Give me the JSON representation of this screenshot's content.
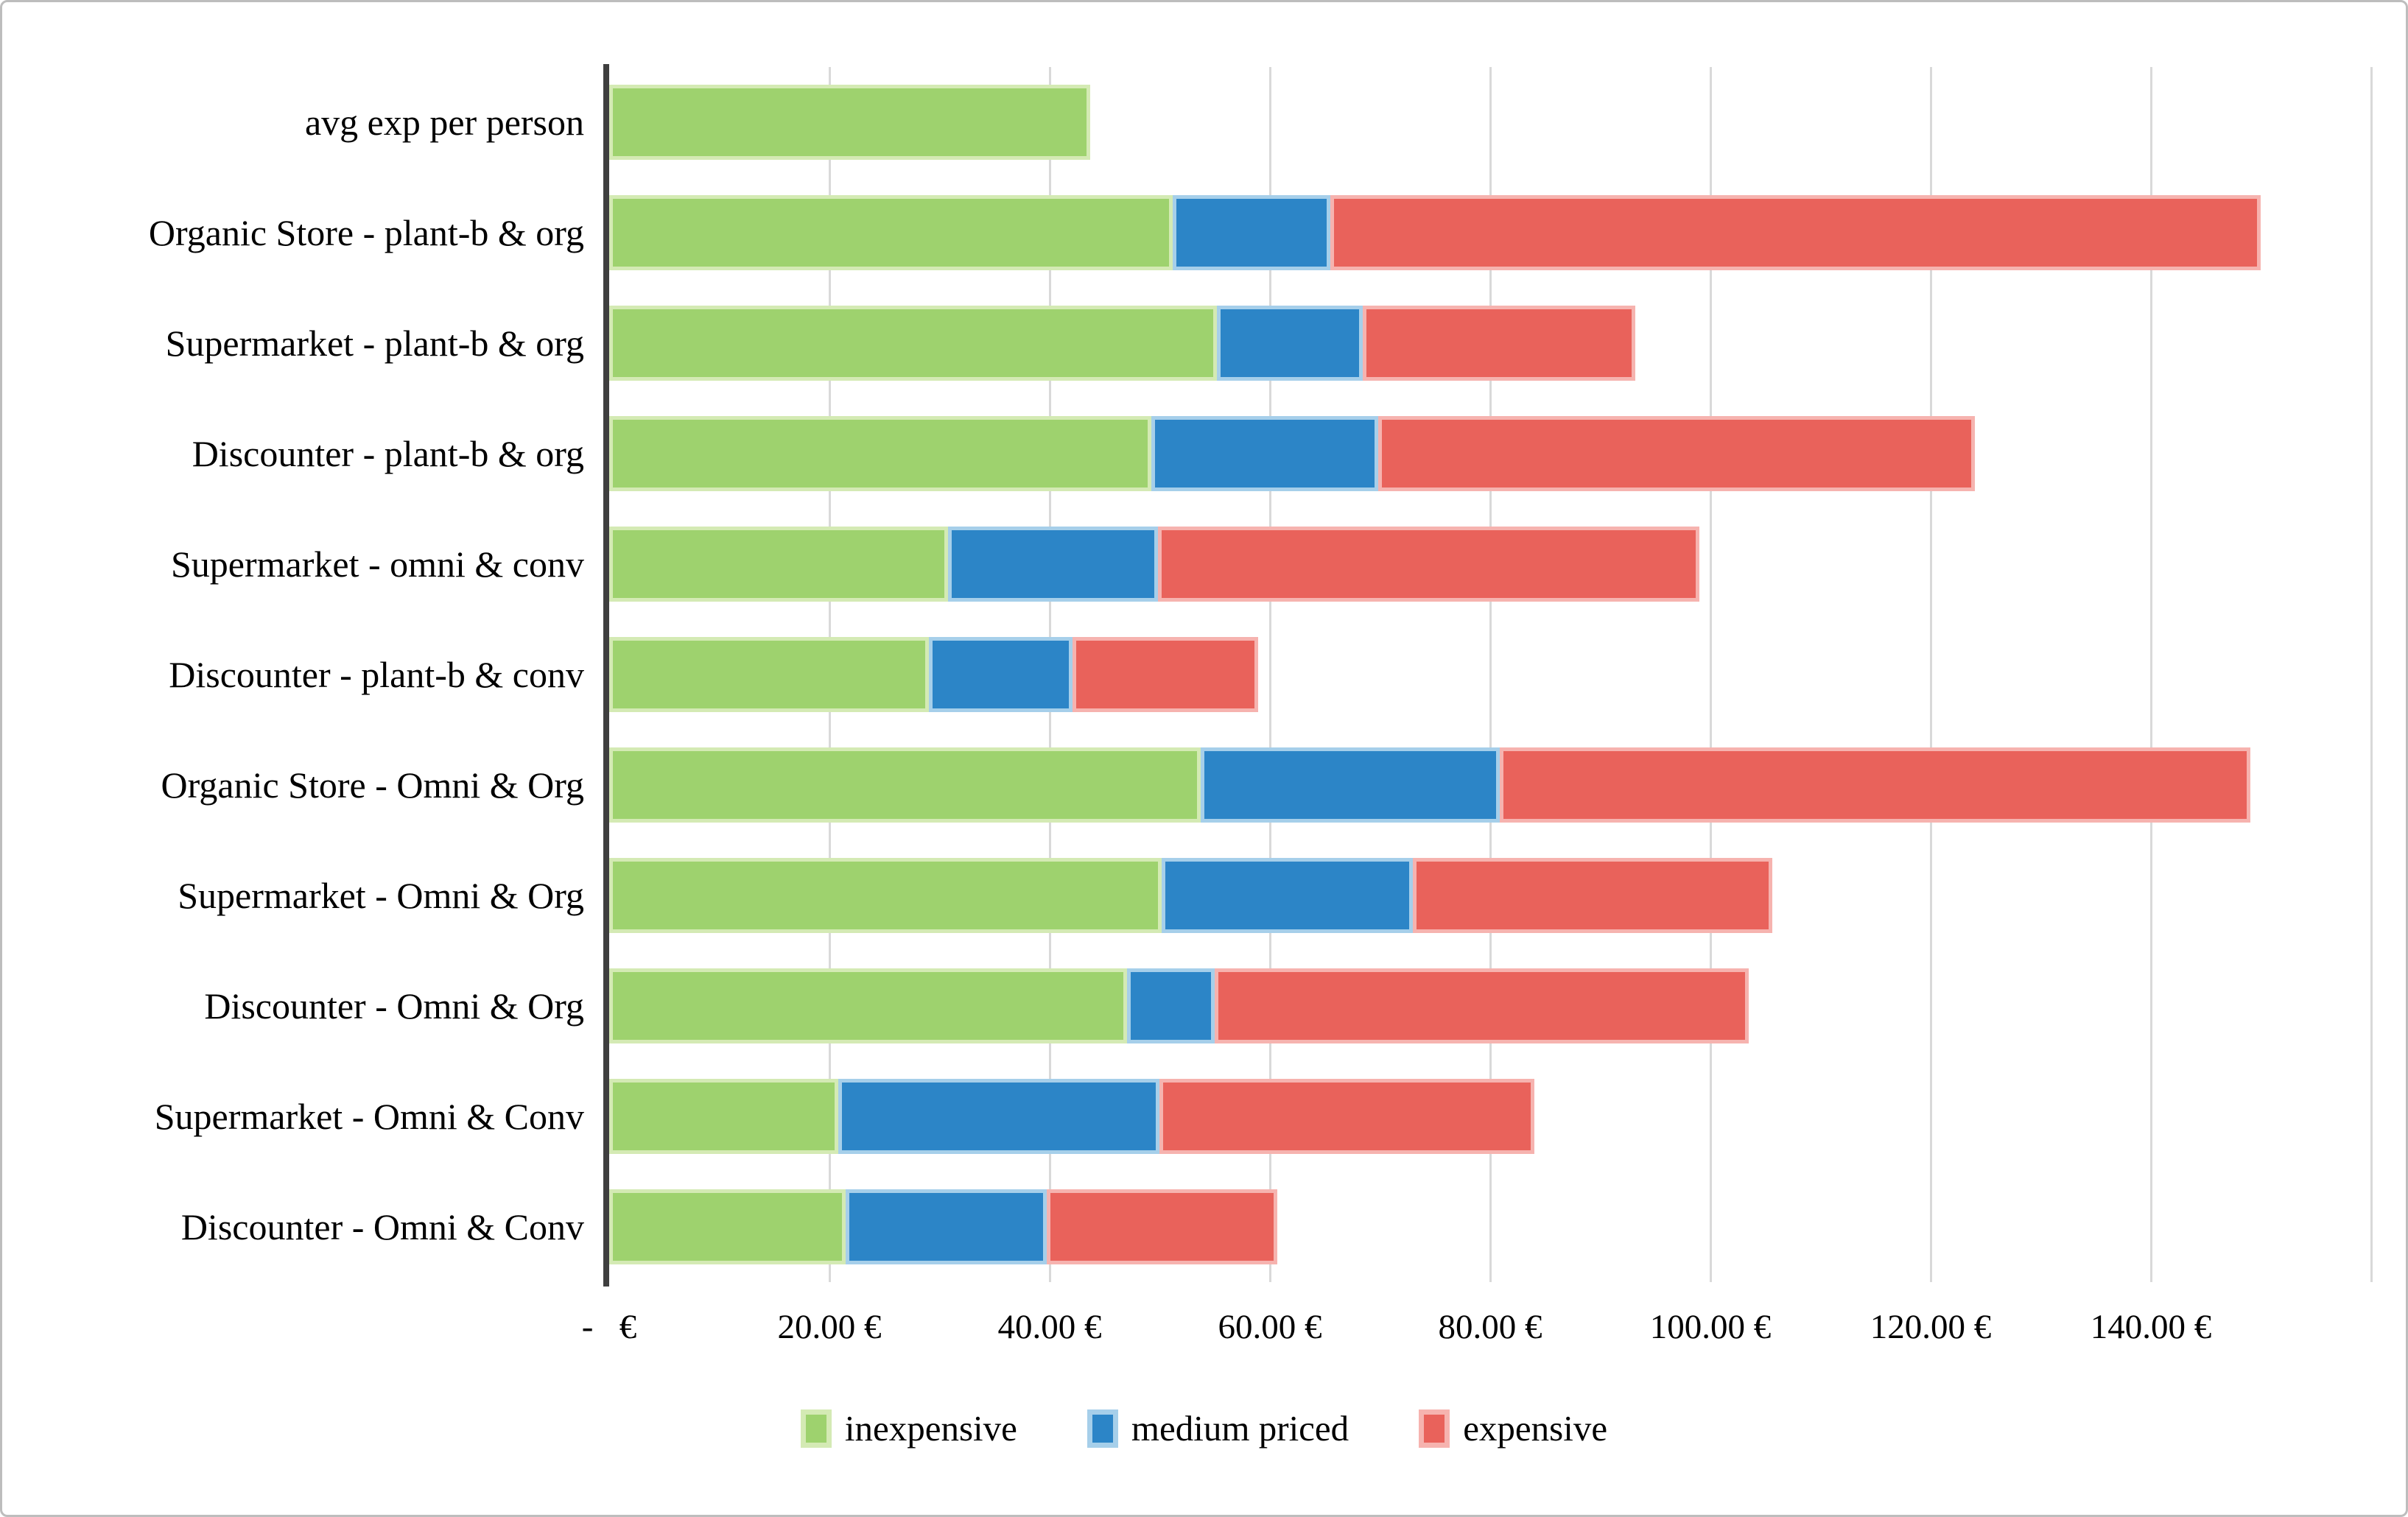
{
  "chart_data": {
    "type": "bar",
    "orientation": "horizontal",
    "stacked": true,
    "title": "",
    "xlabel": "",
    "ylabel": "",
    "grid": true,
    "categories": [
      "avg exp per person",
      "Organic Store - plant-b & org",
      "Supermarket - plant-b & org",
      "Discounter - plant-b & org",
      "Supermarket - omni & conv",
      "Discounter - plant-b & conv",
      "Organic Store - Omni & Org",
      "Supermarket - Omni & Org",
      "Discounter - Omni & Org",
      "Supermarket - Omni & Conv",
      "Discounter - Omni & Conv"
    ],
    "series": [
      {
        "name": "inexpensive",
        "color": "#9ed26e",
        "border_color": "#d4eab4",
        "values": [
          43.7,
          51.2,
          55.2,
          49.2,
          30.8,
          29.0,
          53.7,
          50.2,
          47.0,
          20.8,
          21.5
        ]
      },
      {
        "name": "medium priced",
        "color": "#2c85c7",
        "border_color": "#a6cfea",
        "values": [
          0,
          14.3,
          13.2,
          20.6,
          19.0,
          13.1,
          27.2,
          22.8,
          8.0,
          29.2,
          18.2
        ]
      },
      {
        "name": "expensive",
        "color": "#e9625b",
        "border_color": "#f6b3af",
        "values": [
          0,
          84.5,
          24.8,
          54.2,
          49.2,
          16.8,
          68.1,
          32.6,
          48.5,
          34.0,
          21.0
        ]
      }
    ],
    "x_axis": {
      "min": 0,
      "max": 160,
      "tick_values": [
        0,
        20,
        40,
        60,
        80,
        100,
        120,
        140
      ],
      "tick_labels": [
        "-   €",
        "20.00 €",
        "40.00 €",
        "60.00 €",
        "80.00 €",
        "100.00 €",
        "120.00 €",
        "140.00 €"
      ],
      "gridline_values": [
        20,
        40,
        60,
        80,
        100,
        120,
        140,
        160
      ]
    },
    "legend": {
      "position": "bottom",
      "entries": [
        "inexpensive",
        "medium priced",
        "expensive"
      ]
    }
  },
  "colors": {
    "axis_line": "#3f3f3f",
    "gridline": "#d9d9d9",
    "frame_border": "#bdbdbd",
    "background": "#ffffff",
    "text": "#000000"
  }
}
